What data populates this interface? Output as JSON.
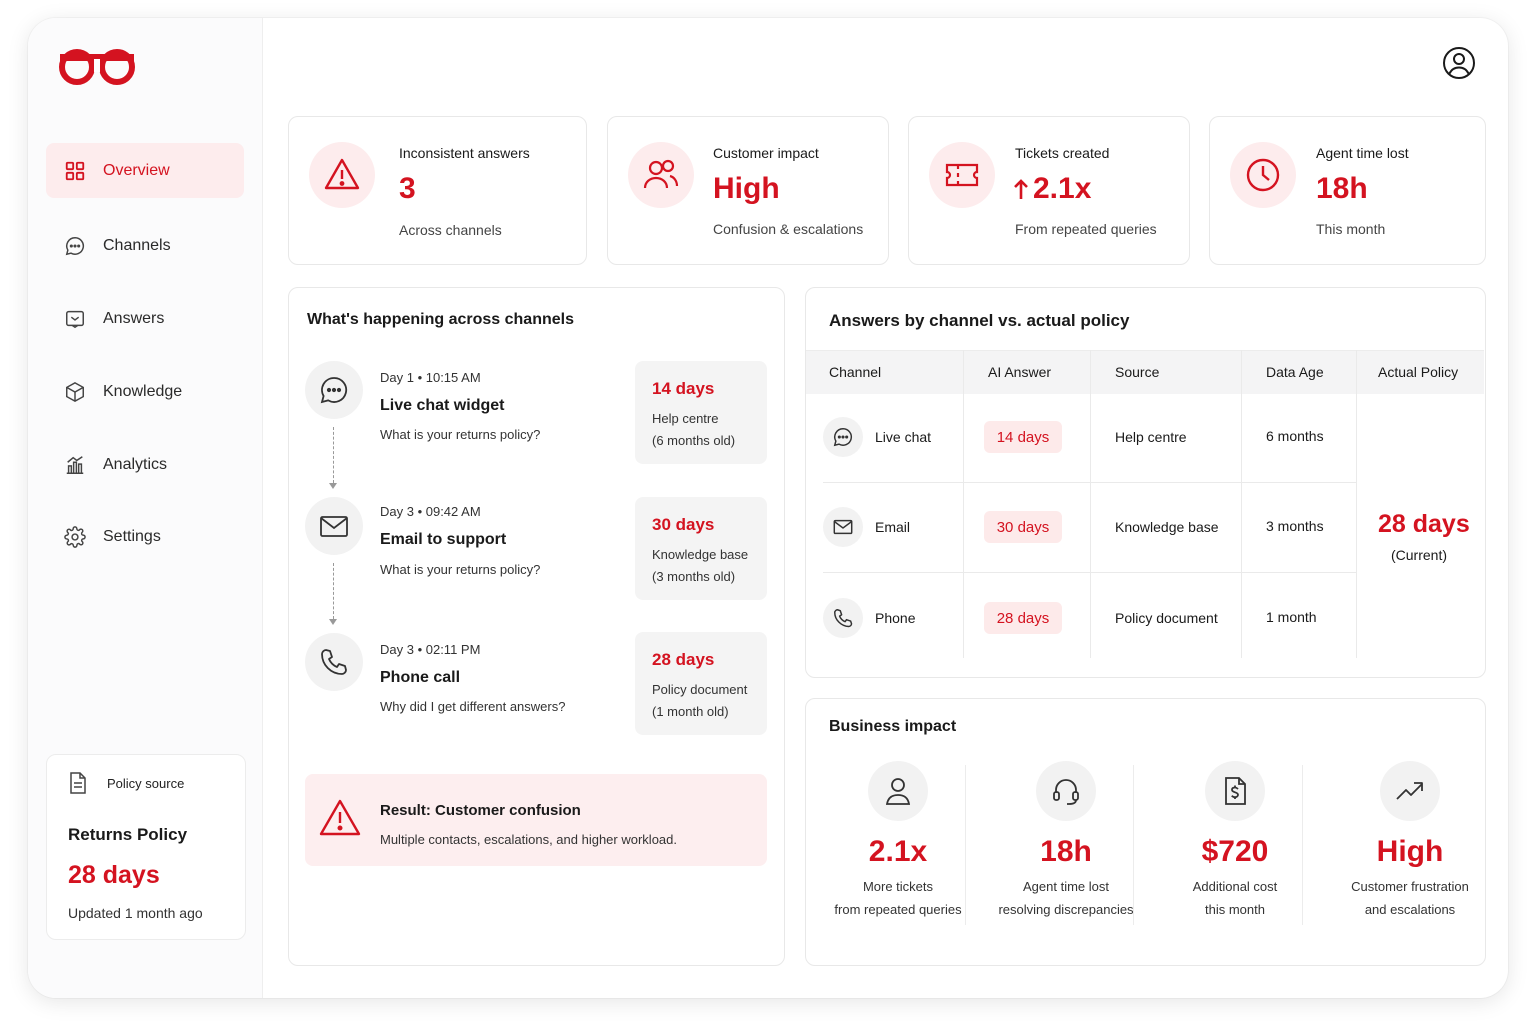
{
  "colors": {
    "accent": "#d41320",
    "accent_soft": "#fdeced",
    "neutral_circle": "#f2f2f2"
  },
  "sidebar": {
    "items": [
      {
        "label": "Overview",
        "icon": "grid-icon",
        "active": true
      },
      {
        "label": "Channels",
        "icon": "chat-bubble-icon",
        "active": false
      },
      {
        "label": "Answers",
        "icon": "inbox-icon",
        "active": false
      },
      {
        "label": "Knowledge",
        "icon": "cube-icon",
        "active": false
      },
      {
        "label": "Analytics",
        "icon": "bar-chart-icon",
        "active": false
      },
      {
        "label": "Settings",
        "icon": "gear-icon",
        "active": false
      }
    ],
    "policy_card": {
      "header": "Policy source",
      "title": "Returns Policy",
      "value": "28 days",
      "updated": "Updated 1 month ago"
    }
  },
  "kpis": [
    {
      "label": "Inconsistent answers",
      "value": "3",
      "sub": "Across channels",
      "icon": "warning-icon"
    },
    {
      "label": "Customer impact",
      "value": "High",
      "sub": "Confusion & escalations",
      "icon": "users-icon"
    },
    {
      "label": "Tickets created",
      "value": "2.1x",
      "sub": "From repeated queries",
      "icon": "ticket-icon",
      "trend": "up"
    },
    {
      "label": "Agent time lost",
      "value": "18h",
      "sub": "This month",
      "icon": "clock-icon"
    }
  ],
  "timeline": {
    "title": "What's happening across channels",
    "events": [
      {
        "date": "Day 1 • 10:15 AM",
        "channel": "Live chat widget",
        "question": "What is your returns policy?",
        "answer": "14 days",
        "source": "Help centre",
        "age": "(6 months old)",
        "icon": "chat-bubble-icon"
      },
      {
        "date": "Day 3 • 09:42 AM",
        "channel": "Email to support",
        "question": "What is your returns policy?",
        "answer": "30 days",
        "source": "Knowledge base",
        "age": "(3 months old)",
        "icon": "mail-icon"
      },
      {
        "date": "Day 3 • 02:11 PM",
        "channel": "Phone call",
        "question": "Why did I get different answers?",
        "answer": "28 days",
        "source": "Policy document",
        "age": "(1 month old)",
        "icon": "phone-icon"
      }
    ],
    "result": {
      "title": "Result: Customer confusion",
      "text": "Multiple contacts, escalations, and higher workload."
    }
  },
  "comparison": {
    "title": "Answers by channel vs. actual policy",
    "columns": [
      "Channel",
      "AI Answer",
      "Source",
      "Data Age",
      "Actual Policy"
    ],
    "rows": [
      {
        "channel": "Live chat",
        "ai_answer": "14 days",
        "source": "Help centre",
        "data_age": "6 months",
        "icon": "chat-bubble-icon"
      },
      {
        "channel": "Email",
        "ai_answer": "30 days",
        "source": "Knowledge base",
        "data_age": "3 months",
        "icon": "mail-icon"
      },
      {
        "channel": "Phone",
        "ai_answer": "28 days",
        "source": "Policy document",
        "data_age": "1 month",
        "icon": "phone-icon"
      }
    ],
    "actual_policy": {
      "value": "28 days",
      "note": "(Current)"
    }
  },
  "business_impact": {
    "title": "Business impact",
    "items": [
      {
        "value": "2.1x",
        "line1": "More tickets",
        "line2": "from repeated queries",
        "icon": "person-icon"
      },
      {
        "value": "18h",
        "line1": "Agent time lost",
        "line2": "resolving discrepancies",
        "icon": "headset-icon"
      },
      {
        "value": "$720",
        "line1": "Additional cost",
        "line2": "this month",
        "icon": "dollar-document-icon"
      },
      {
        "value": "High",
        "line1": "Customer frustration",
        "line2": "and escalations",
        "icon": "trend-up-icon"
      }
    ]
  }
}
